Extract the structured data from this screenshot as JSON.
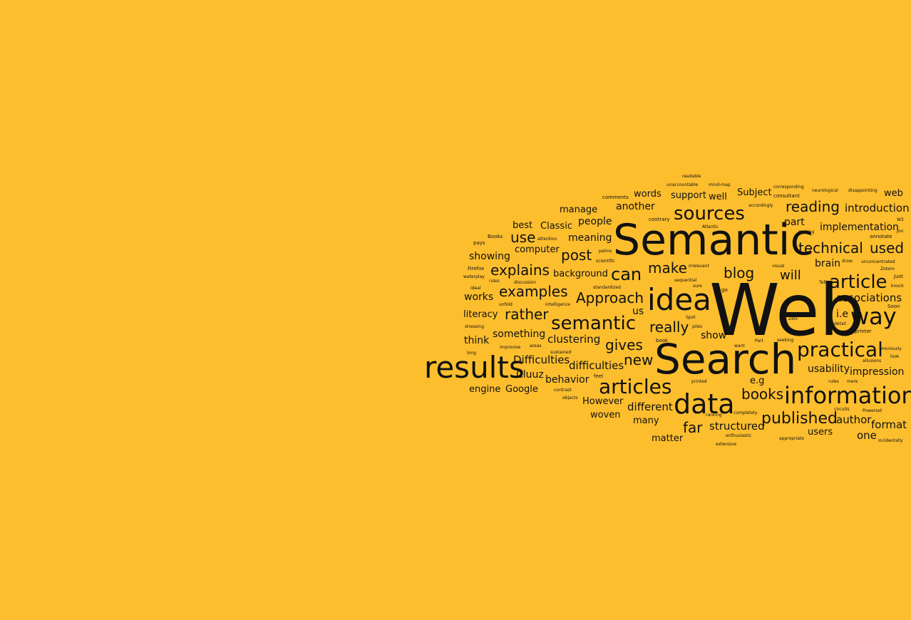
{
  "background_color": "#FDBE2E",
  "text_color": "#111111",
  "words": [
    "Web",
    "Semantic",
    "Search",
    "results",
    "data",
    "idea",
    "information",
    "practical",
    "sources",
    "articles",
    "semantic",
    "article",
    "way",
    "technical",
    "reading",
    "books",
    "published",
    "examples",
    "explains",
    "Approach",
    "gives",
    "blog",
    "post",
    "can",
    "make",
    "new",
    "rather",
    "really",
    "introduction",
    "implementation",
    "used",
    "associations",
    "usability",
    "impression",
    "structured",
    "clustering",
    "different",
    "author",
    "format",
    "Difficulties",
    "difficulties",
    "far",
    "behavior",
    "works",
    "literacy",
    "think",
    "something",
    "engine",
    "Google",
    "Cluuz",
    "However",
    "woven",
    "many",
    "matter",
    "users",
    "one",
    "showing",
    "computer",
    "background",
    "meaning",
    "people",
    "Classic",
    "best",
    "use",
    "manage",
    "another",
    "words",
    "support",
    "well",
    "Subject",
    "part",
    "brain",
    "will",
    "show",
    "us",
    "i.e",
    "e.g",
    "web",
    "readable",
    "unaccountable",
    "mind-map",
    "corresponding",
    "neurological",
    "disappointing",
    "comments",
    "accordingly",
    "consultant",
    "contrary",
    "Atlantic",
    "W3",
    "annotate",
    "Books",
    "attention",
    "making",
    "Joo",
    "pays",
    "palms",
    "scientific",
    "unconcentrated",
    "Zotero",
    "draw",
    "Firefox",
    "sequential",
    "irrelevant",
    "visual",
    "Just",
    "waterplay",
    "rules",
    "discussion",
    "standardized",
    "sure",
    "knock",
    "Tell",
    "As",
    "ideal",
    "unfold",
    "intelligence",
    "go",
    "Soon",
    "stressing",
    "Spot",
    "piles",
    "Zelv",
    "detail",
    "printer",
    "long",
    "areas",
    "improvise",
    "book",
    "Part",
    "seeking",
    "want",
    "previously",
    "look",
    "allusions",
    "sustained",
    "printed",
    "mere",
    "feel",
    "rules",
    "circuits",
    "Powerset",
    "contrast",
    "objects",
    "ranking",
    "completely",
    "enthusiastic",
    "appropriate",
    "extensive",
    "incidentally"
  ]
}
